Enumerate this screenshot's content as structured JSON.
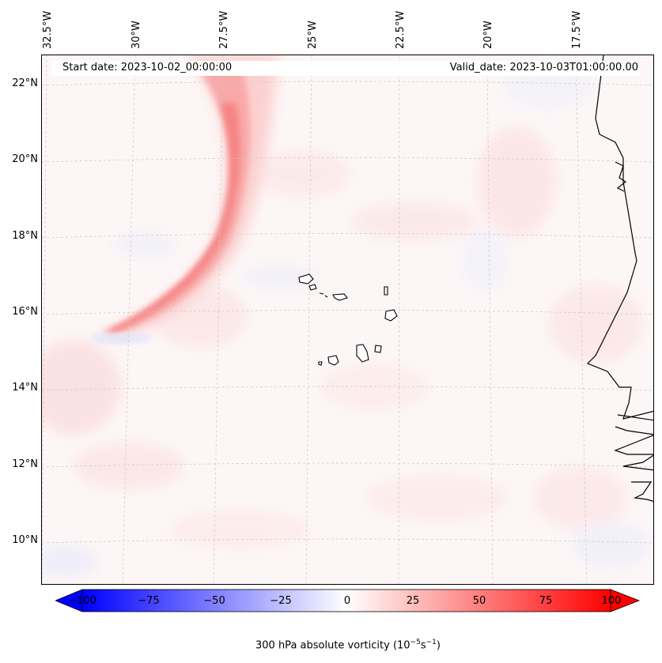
{
  "header": {
    "start_date": "Start date: 2023-10-02_00:00:00",
    "valid_date": "Valid_date: 2023-10-03T01:00:00.00"
  },
  "longitude_labels": [
    "32.5°W",
    "30°W",
    "27.5°W",
    "25°W",
    "22.5°W",
    "20°W",
    "17.5°W"
  ],
  "latitude_labels": [
    "22°N",
    "20°N",
    "18°N",
    "16°N",
    "14°N",
    "12°N",
    "10°N"
  ],
  "colorbar": {
    "ticks": [
      "−100",
      "−75",
      "−50",
      "−25",
      "0",
      "25",
      "50",
      "75",
      "100"
    ],
    "label_prefix": "300 hPa absolute vorticity (10",
    "label_exp1": "−5",
    "label_mid": "s",
    "label_exp2": "−1",
    "label_suffix": ")",
    "min": -100,
    "max": 100,
    "colormap": "bwr",
    "extend": "both"
  },
  "colors": {
    "negative": "#0000ff",
    "zero": "#ffffff",
    "positive": "#ff0000",
    "coastline": "#000000",
    "gridline": "#b0b0b0"
  }
}
